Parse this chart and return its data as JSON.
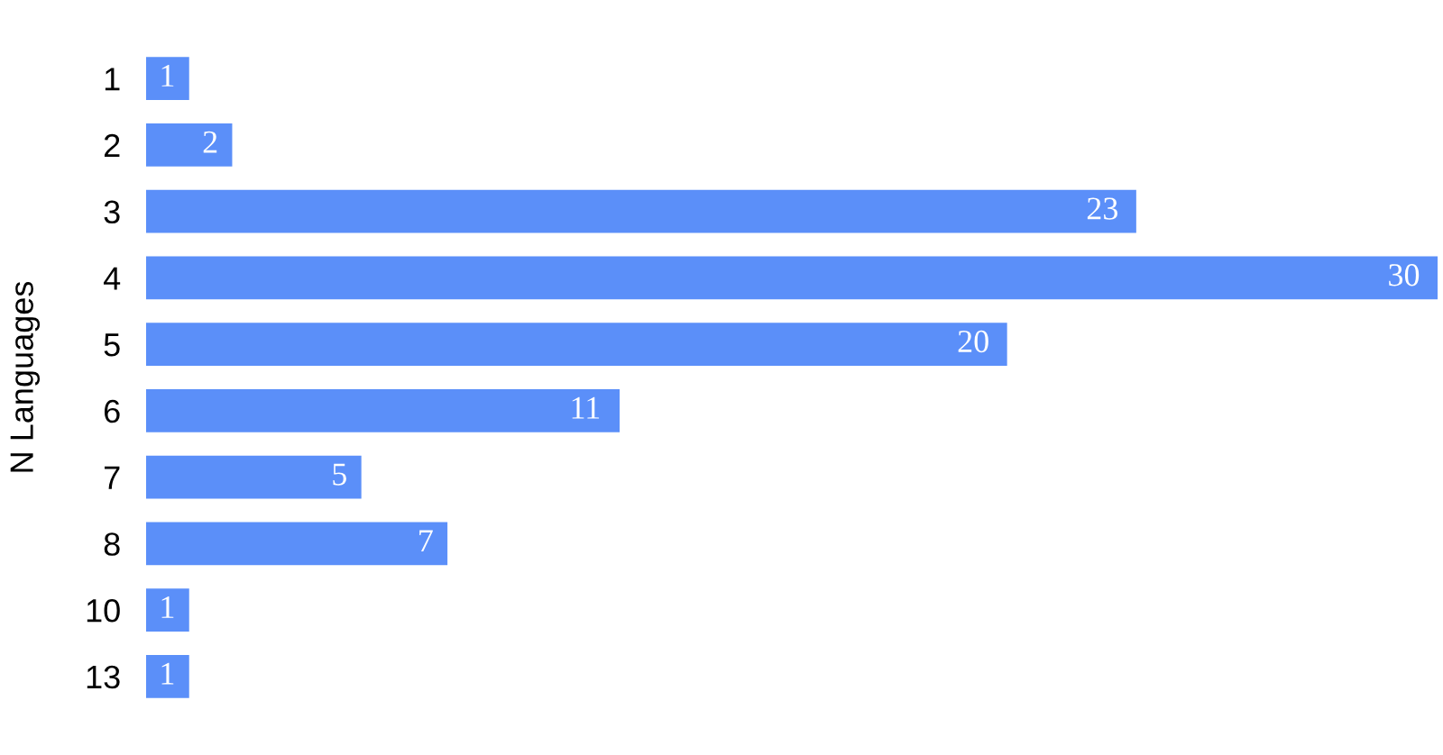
{
  "chart_data": {
    "type": "bar",
    "orientation": "horizontal",
    "ylabel": "N Languages",
    "categories": [
      "1",
      "2",
      "3",
      "4",
      "5",
      "6",
      "7",
      "8",
      "10",
      "13"
    ],
    "values": [
      1,
      2,
      23,
      30,
      20,
      11,
      5,
      7,
      1,
      1
    ],
    "color": "#5b8ff9",
    "data_labels": true,
    "grid": false,
    "legend": false
  }
}
